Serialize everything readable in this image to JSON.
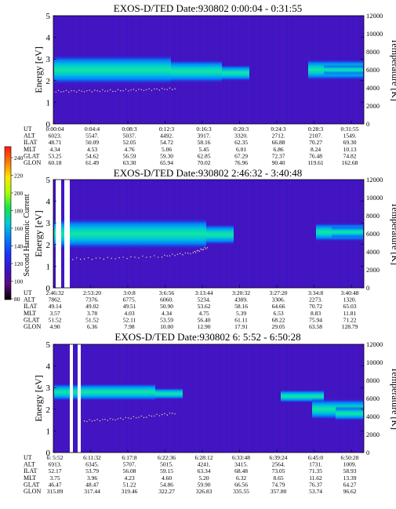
{
  "colorbar": {
    "label": "Second Harmonic Current",
    "ticks": [
      "240",
      "220",
      "200",
      "180",
      "160",
      "140",
      "120",
      "100",
      "80"
    ],
    "stops": [
      "#ff1a10",
      "#ff7a00",
      "#ffe600",
      "#aaff00",
      "#14e64b",
      "#00ccd2",
      "#0080ff",
      "#1a33ff",
      "#3a14c8",
      "#5a0a82",
      "#000000"
    ]
  },
  "chart_data": [
    {
      "type": "heatmap",
      "title": "EXOS-D/TED   Date:930802   0:00:04 - 0:31:55",
      "ylabel": "Energy [eV]",
      "y2label": "Temperature [K]",
      "ylim": [
        0,
        5
      ],
      "y2lim": [
        0,
        12000
      ],
      "yticks": [
        "0",
        "1",
        "2",
        "3",
        "4",
        "5"
      ],
      "y2ticks": [
        "0",
        "2000",
        "4000",
        "6000",
        "8000",
        "10000",
        "12000"
      ],
      "row_labels": [
        "UT",
        "ALT",
        "ILAT",
        "MLT",
        "GLAT",
        "GLON"
      ],
      "columns": [
        [
          "0:00:04",
          "6023.",
          "48.71",
          "4.34",
          "53.25",
          "60.18"
        ],
        [
          "0:04:4",
          "5547.",
          "50.09",
          "4.53",
          "54.62",
          "61.49"
        ],
        [
          "0:08:3",
          "5037.",
          "52.05",
          "4.76",
          "56.59",
          "63.30"
        ],
        [
          "0:12:3",
          "4492.",
          "54.72",
          "5.06",
          "59.30",
          "65.94"
        ],
        [
          "0:16:3",
          "3917.",
          "58.16",
          "5.45",
          "62.85",
          "70.02"
        ],
        [
          "0:20:3",
          "3320.",
          "62.35",
          "6.01",
          "67.29",
          "76.96"
        ],
        [
          "0:24:3",
          "2712.",
          "66.88",
          "6.86",
          "72.37",
          "90.40"
        ],
        [
          "0:28:3",
          "2107.",
          "70.27",
          "8.24",
          "76.48",
          "119.61"
        ],
        [
          "0:31:55",
          "1549.",
          "69.30",
          "10.13",
          "74.82",
          "162.68"
        ]
      ],
      "band_center_ev": 2.5,
      "temperature_trace": {
        "t": [
          0.0,
          0.1,
          0.2,
          0.3,
          0.4
        ],
        "K": [
          3600,
          3650,
          3700,
          3800,
          3900
        ]
      }
    },
    {
      "type": "heatmap",
      "title": "EXOS-D/TED   Date:930802   2:46:32 - 3:40:48",
      "ylabel": "Energy [eV]",
      "y2label": "Temperature [K]",
      "ylim": [
        0,
        5
      ],
      "y2lim": [
        0,
        12000
      ],
      "yticks": [
        "0",
        "1",
        "2",
        "3",
        "4",
        "5"
      ],
      "y2ticks": [
        "0",
        "2000",
        "4000",
        "6000",
        "8000",
        "10000",
        "12000"
      ],
      "row_labels": [
        "UT",
        "ALT",
        "ILAT",
        "MLT",
        "GLAT",
        "GLON"
      ],
      "columns": [
        [
          "2:46:32",
          "7862.",
          "49.14",
          "3.57",
          "51.52",
          "4.90"
        ],
        [
          "2:53:20",
          "7376.",
          "49.02",
          "3.78",
          "51.52",
          "6.36"
        ],
        [
          "3:0:8",
          "6775.",
          "49.51",
          "4.03",
          "52.11",
          "7.98"
        ],
        [
          "3:6:56",
          "6060.",
          "50.90",
          "4.34",
          "53.59",
          "10.00"
        ],
        [
          "3:13:44",
          "5234.",
          "53.62",
          "4.75",
          "56.40",
          "12.90"
        ],
        [
          "3:20:32",
          "4309.",
          "58.16",
          "5.39",
          "61.11",
          "17.91"
        ],
        [
          "3:27:20",
          "3306.",
          "64.66",
          "6.53",
          "68.22",
          "29.05"
        ],
        [
          "3:34:8",
          "2273.",
          "70.72",
          "8.83",
          "75.94",
          "63.58"
        ],
        [
          "3:40:48",
          "1320.",
          "65.03",
          "11.81",
          "71.22",
          "128.79"
        ]
      ],
      "band_center_ev": 2.5,
      "temperature_trace": {
        "t": [
          0.05,
          0.2,
          0.35,
          0.45,
          0.5
        ],
        "K": [
          3200,
          3300,
          3500,
          3900,
          4500
        ]
      }
    },
    {
      "type": "heatmap",
      "title": "EXOS-D/TED   Date:930802   6: 5:52 - 6:50:28",
      "ylabel": "Energy [eV]",
      "y2label": "Temperature [K]",
      "ylim": [
        0,
        5
      ],
      "y2lim": [
        0,
        12000
      ],
      "yticks": [
        "0",
        "1",
        "2",
        "3",
        "4",
        "5"
      ],
      "y2ticks": [
        "0",
        "2000",
        "4000",
        "6000",
        "8000",
        "10000",
        "12000"
      ],
      "row_labels": [
        "UT",
        "ALT",
        "ILAT",
        "MLT",
        "GLAT",
        "GLON"
      ],
      "columns": [
        [
          "6: 5:52",
          "6913.",
          "52.17",
          "3.75",
          "46.47",
          "315.89"
        ],
        [
          "6:11:32",
          "6345.",
          "53.79",
          "3.96",
          "48.47",
          "317.44"
        ],
        [
          "6:17:8",
          "5707.",
          "56.08",
          "4.23",
          "51.22",
          "319.46"
        ],
        [
          "6:22:36",
          "5015.",
          "59.15",
          "4.60",
          "54.86",
          "322.27"
        ],
        [
          "6:28:12",
          "4241.",
          "63.34",
          "5.20",
          "59.90",
          "326.83"
        ],
        [
          "6:33:48",
          "3415.",
          "68.48",
          "6.32",
          "66.56",
          "335.55"
        ],
        [
          "6:39:24",
          "2564.",
          "73.05",
          "8.65",
          "74.79",
          "357.80"
        ],
        [
          "6:45:0",
          "1731.",
          "71.35",
          "11.62",
          "76.37",
          "53.74"
        ],
        [
          "6:50:28",
          "1009.",
          "58.93",
          "13.39",
          "64.27",
          "96.62"
        ]
      ],
      "band_center_ev": 2.5,
      "temperature_trace": {
        "t": [
          0.1,
          0.2,
          0.3,
          0.4
        ],
        "K": [
          3500,
          3700,
          4000,
          4400
        ]
      }
    }
  ]
}
